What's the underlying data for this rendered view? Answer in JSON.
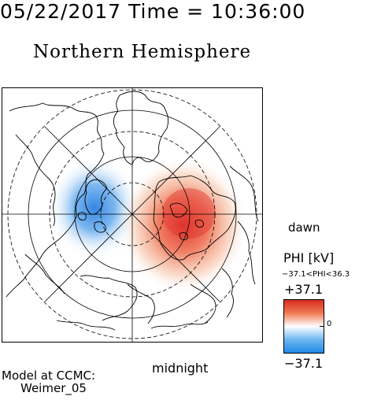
{
  "header": {
    "datetime": "05/22/2017 Time = 10:36:00",
    "hemisphere_title": "Northern Hemisphere"
  },
  "map": {
    "projection": "polar",
    "orientation_labels": {
      "dawn": "dawn",
      "midnight": "midnight"
    },
    "potential_cells": [
      {
        "sign": "negative",
        "color": "#2e7fe0",
        "location": "dusk side"
      },
      {
        "sign": "positive",
        "color": "#e0352e",
        "location": "dawn side"
      }
    ]
  },
  "colorbar": {
    "title": "PHI [kV]",
    "range_text": "−37.1<PHI<36.3",
    "max_label": "+37.1",
    "min_label": "−37.1",
    "zero_label": "0",
    "colors": {
      "max": "#d62a1e",
      "mid": "#ffffff",
      "min": "#1e88e5"
    }
  },
  "model": {
    "line1": "Model at CCMC:",
    "line2": "Weimer_05"
  }
}
